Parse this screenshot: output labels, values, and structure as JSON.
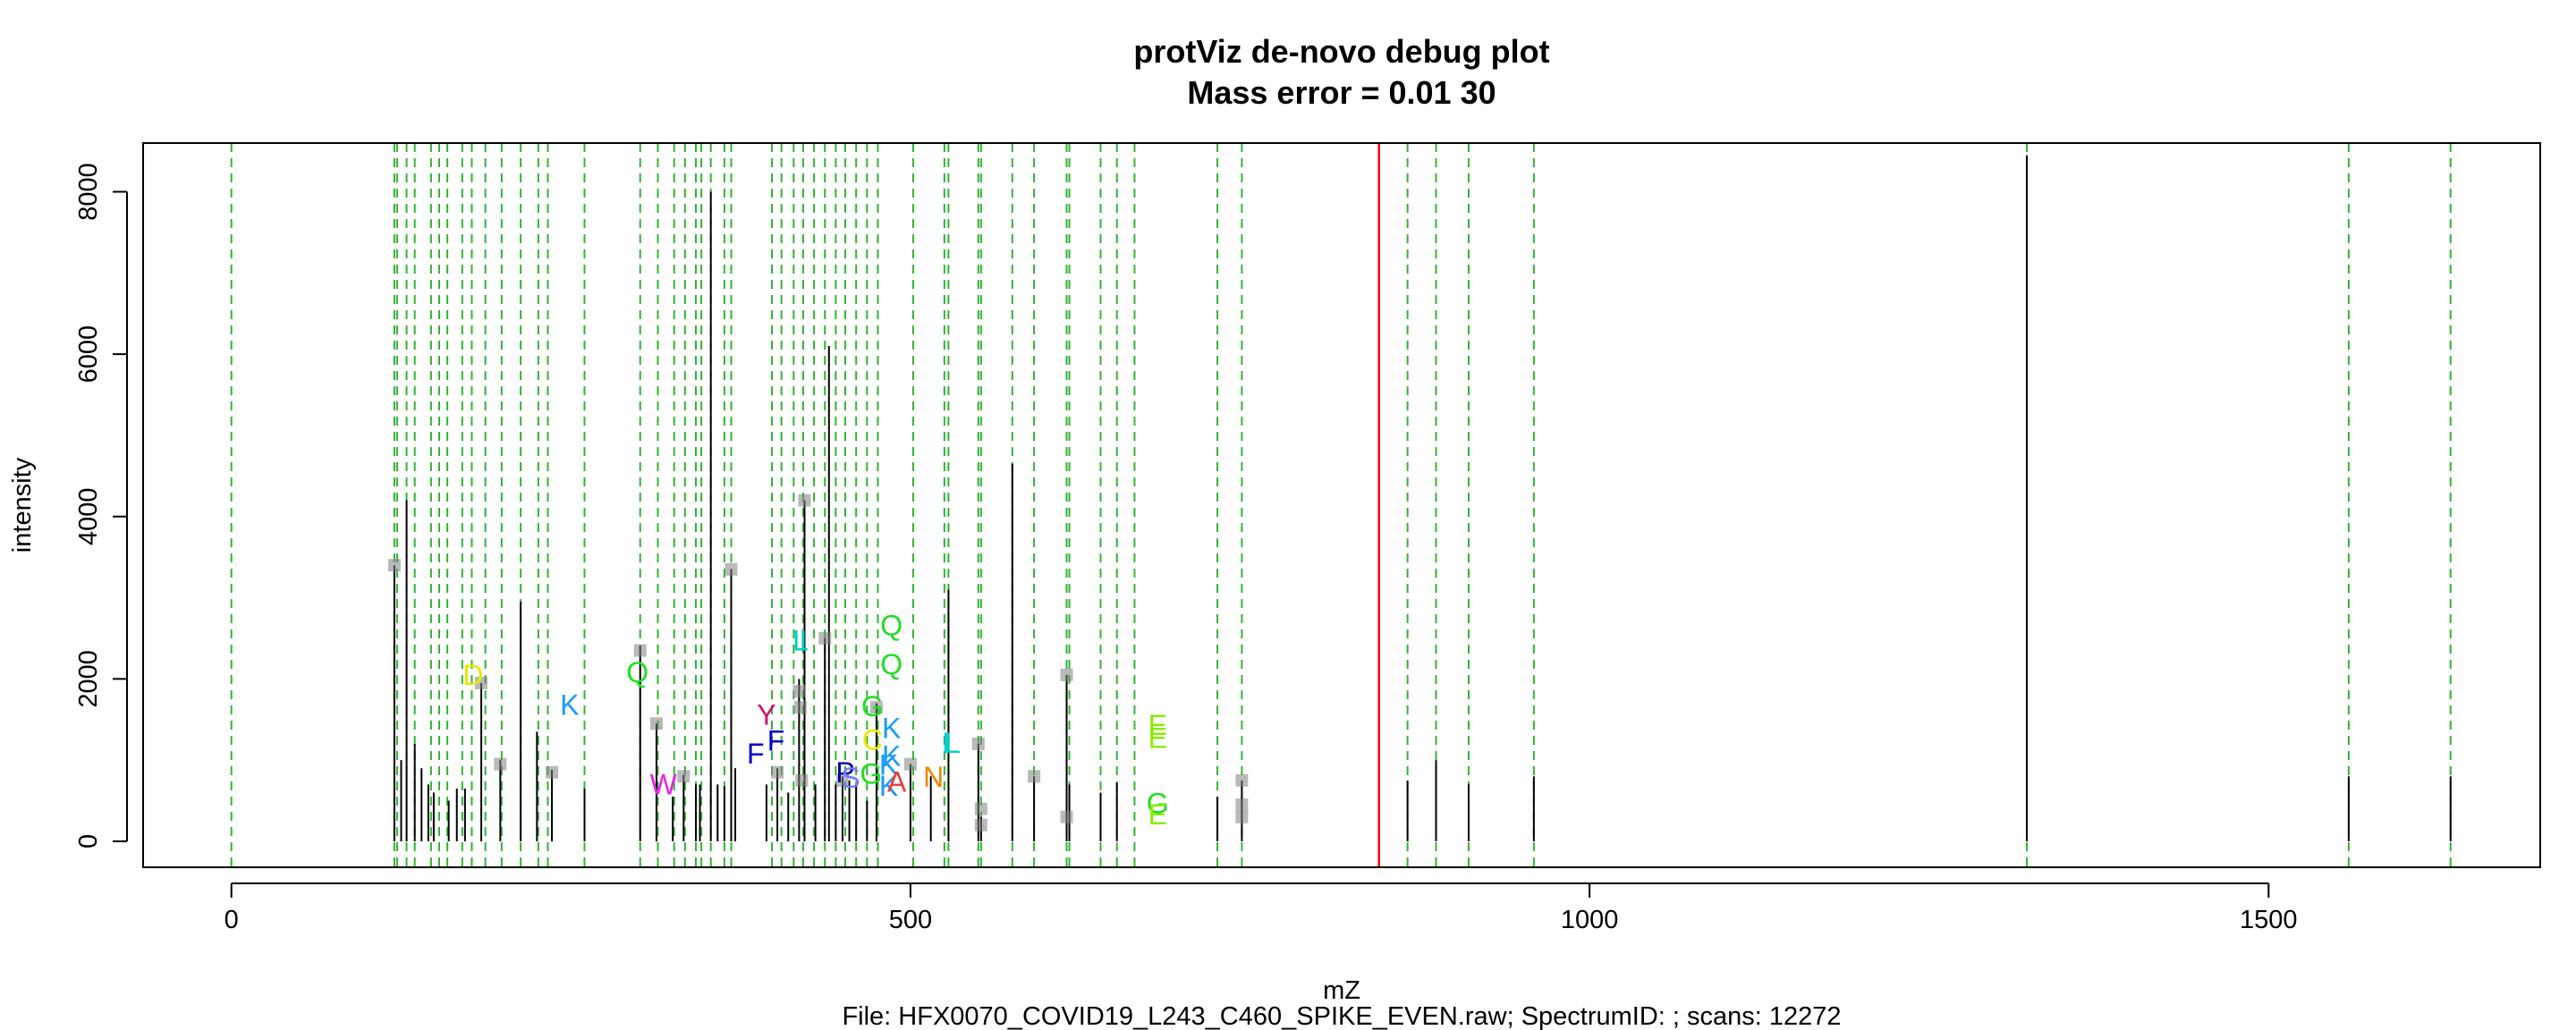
{
  "chart_data": {
    "type": "scatter",
    "title": "protViz de-novo debug plot",
    "subtitle": "Mass error = 0.01 30",
    "xlabel": "mZ",
    "ylabel": "intensity",
    "caption": "File: HFX0070_COVID19_L243_C460_SPIKE_EVEN.raw; SpectrumID: ; scans: 12272",
    "xlim": [
      -65,
      1700
    ],
    "ylim": [
      -320,
      8600
    ],
    "x_ticks": [
      {
        "value": 0,
        "label": "0"
      },
      {
        "value": 500,
        "label": "500"
      },
      {
        "value": 1000,
        "label": "1000"
      },
      {
        "value": 1500,
        "label": "1500"
      }
    ],
    "y_ticks": [
      {
        "value": 0,
        "label": "0"
      },
      {
        "value": 2000,
        "label": "2000"
      },
      {
        "value": 4000,
        "label": "4000"
      },
      {
        "value": 6000,
        "label": "6000"
      },
      {
        "value": 8000,
        "label": "8000"
      }
    ],
    "precursor_mz": 845,
    "colors": {
      "precursor": "#ff0000",
      "ion_line": "#00a000",
      "peak": "#000000",
      "marker": "#7f7f7f"
    },
    "ion_lines": [
      0,
      120,
      122,
      129,
      135,
      147,
      153,
      159,
      170,
      177,
      187,
      199,
      213,
      226,
      233,
      260,
      301,
      314,
      326,
      334,
      342,
      346,
      353,
      363,
      368,
      398,
      405,
      414,
      421,
      429,
      437,
      445,
      452,
      460,
      468,
      476,
      502,
      525,
      528,
      550,
      552,
      575,
      591,
      615,
      617,
      640,
      652,
      665,
      726,
      744,
      866,
      887,
      911,
      959,
      1322,
      1559,
      1634
    ],
    "peaks": [
      {
        "x": 120,
        "y": 3400
      },
      {
        "x": 125,
        "y": 1000
      },
      {
        "x": 129,
        "y": 4200
      },
      {
        "x": 135,
        "y": 1200
      },
      {
        "x": 140,
        "y": 900
      },
      {
        "x": 145,
        "y": 700
      },
      {
        "x": 149,
        "y": 600
      },
      {
        "x": 160,
        "y": 500
      },
      {
        "x": 166,
        "y": 650
      },
      {
        "x": 172,
        "y": 650
      },
      {
        "x": 184,
        "y": 1950
      },
      {
        "x": 198,
        "y": 1000
      },
      {
        "x": 213,
        "y": 2950
      },
      {
        "x": 225,
        "y": 1350
      },
      {
        "x": 236,
        "y": 880
      },
      {
        "x": 260,
        "y": 650
      },
      {
        "x": 301,
        "y": 2400
      },
      {
        "x": 313,
        "y": 1450
      },
      {
        "x": 325,
        "y": 550
      },
      {
        "x": 333,
        "y": 820
      },
      {
        "x": 342,
        "y": 700
      },
      {
        "x": 345,
        "y": 700
      },
      {
        "x": 353,
        "y": 8000
      },
      {
        "x": 358,
        "y": 700
      },
      {
        "x": 363,
        "y": 680
      },
      {
        "x": 368,
        "y": 3350
      },
      {
        "x": 371,
        "y": 900
      },
      {
        "x": 394,
        "y": 700
      },
      {
        "x": 402,
        "y": 900
      },
      {
        "x": 410,
        "y": 600
      },
      {
        "x": 418,
        "y": 2000
      },
      {
        "x": 422,
        "y": 4200
      },
      {
        "x": 430,
        "y": 700
      },
      {
        "x": 437,
        "y": 2500
      },
      {
        "x": 440,
        "y": 6100
      },
      {
        "x": 445,
        "y": 700
      },
      {
        "x": 450,
        "y": 800
      },
      {
        "x": 455,
        "y": 750
      },
      {
        "x": 460,
        "y": 700
      },
      {
        "x": 468,
        "y": 500
      },
      {
        "x": 475,
        "y": 1700
      },
      {
        "x": 500,
        "y": 950
      },
      {
        "x": 515,
        "y": 800
      },
      {
        "x": 528,
        "y": 3100
      },
      {
        "x": 550,
        "y": 1200
      },
      {
        "x": 552,
        "y": 300
      },
      {
        "x": 575,
        "y": 4650
      },
      {
        "x": 591,
        "y": 800
      },
      {
        "x": 615,
        "y": 2050
      },
      {
        "x": 617,
        "y": 700
      },
      {
        "x": 640,
        "y": 600
      },
      {
        "x": 652,
        "y": 720
      },
      {
        "x": 726,
        "y": 550
      },
      {
        "x": 744,
        "y": 750
      },
      {
        "x": 866,
        "y": 750
      },
      {
        "x": 887,
        "y": 1000
      },
      {
        "x": 911,
        "y": 700
      },
      {
        "x": 959,
        "y": 800
      },
      {
        "x": 1322,
        "y": 8450
      },
      {
        "x": 1559,
        "y": 800
      },
      {
        "x": 1634,
        "y": 800
      }
    ],
    "markers": [
      {
        "x": 120,
        "y": 3400
      },
      {
        "x": 184,
        "y": 1950
      },
      {
        "x": 198,
        "y": 950
      },
      {
        "x": 236,
        "y": 850
      },
      {
        "x": 301,
        "y": 2350
      },
      {
        "x": 313,
        "y": 1450
      },
      {
        "x": 333,
        "y": 800
      },
      {
        "x": 368,
        "y": 3350
      },
      {
        "x": 402,
        "y": 850
      },
      {
        "x": 418,
        "y": 1850
      },
      {
        "x": 419,
        "y": 1650
      },
      {
        "x": 420,
        "y": 750
      },
      {
        "x": 422,
        "y": 4200
      },
      {
        "x": 437,
        "y": 2500
      },
      {
        "x": 450,
        "y": 750
      },
      {
        "x": 475,
        "y": 1650
      },
      {
        "x": 500,
        "y": 950
      },
      {
        "x": 550,
        "y": 1200
      },
      {
        "x": 552,
        "y": 200
      },
      {
        "x": 552,
        "y": 400
      },
      {
        "x": 591,
        "y": 800
      },
      {
        "x": 615,
        "y": 2050
      },
      {
        "x": 615,
        "y": 300
      },
      {
        "x": 744,
        "y": 750
      },
      {
        "x": 744,
        "y": 450
      },
      {
        "x": 744,
        "y": 300
      }
    ],
    "annotations": [
      {
        "text": "D",
        "x": 178,
        "y": 2050,
        "color": "#e8e800"
      },
      {
        "text": "K",
        "x": 249,
        "y": 1680,
        "color": "#1a9aff"
      },
      {
        "text": "Q",
        "x": 299,
        "y": 2080,
        "color": "#22dd22"
      },
      {
        "text": "W",
        "x": 318,
        "y": 700,
        "color": "#e822e8"
      },
      {
        "text": "Y",
        "x": 394,
        "y": 1560,
        "color": "#d01070"
      },
      {
        "text": "F",
        "x": 386,
        "y": 1080,
        "color": "#0000cc"
      },
      {
        "text": "F",
        "x": 401,
        "y": 1240,
        "color": "#0000cc"
      },
      {
        "text": "L",
        "x": 419,
        "y": 2470,
        "color": "#00cccc"
      },
      {
        "text": "I",
        "x": 421,
        "y": 2470,
        "color": "#00cccc"
      },
      {
        "text": "P",
        "x": 452,
        "y": 850,
        "color": "#0000aa"
      },
      {
        "text": "S",
        "x": 456,
        "y": 780,
        "color": "#7777ff"
      },
      {
        "text": "G",
        "x": 472,
        "y": 1660,
        "color": "#22dd22"
      },
      {
        "text": "G",
        "x": 471,
        "y": 830,
        "color": "#22dd22"
      },
      {
        "text": "C",
        "x": 472,
        "y": 1250,
        "color": "#e8e800"
      },
      {
        "text": "Q",
        "x": 486,
        "y": 2660,
        "color": "#22dd22"
      },
      {
        "text": "Q",
        "x": 486,
        "y": 2180,
        "color": "#22dd22"
      },
      {
        "text": "K",
        "x": 486,
        "y": 1390,
        "color": "#1a9aff"
      },
      {
        "text": "K",
        "x": 486,
        "y": 1050,
        "color": "#1a9aff"
      },
      {
        "text": "K",
        "x": 484,
        "y": 940,
        "color": "#1a9aff"
      },
      {
        "text": "K",
        "x": 484,
        "y": 680,
        "color": "#1a9aff"
      },
      {
        "text": "A",
        "x": 490,
        "y": 730,
        "color": "#e84040"
      },
      {
        "text": "N",
        "x": 517,
        "y": 790,
        "color": "#ee8800"
      },
      {
        "text": "I",
        "x": 526,
        "y": 1210,
        "color": "#00cccc"
      },
      {
        "text": "L",
        "x": 531,
        "y": 1210,
        "color": "#00cccc"
      },
      {
        "text": "E",
        "x": 682,
        "y": 1430,
        "color": "#88ee00"
      },
      {
        "text": "E",
        "x": 682,
        "y": 1270,
        "color": "#88ee00"
      },
      {
        "text": "G",
        "x": 682,
        "y": 470,
        "color": "#22dd22"
      },
      {
        "text": "E",
        "x": 682,
        "y": 330,
        "color": "#88ee00"
      }
    ]
  }
}
